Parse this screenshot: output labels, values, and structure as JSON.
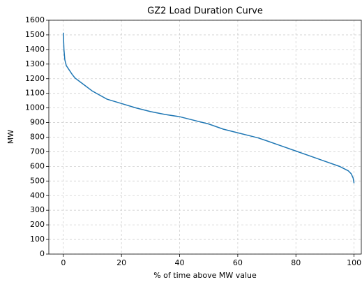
{
  "chart_data": {
    "type": "line",
    "title": "GZ2 Load Duration Curve",
    "xlabel": "% of time above MW value",
    "ylabel": "MW",
    "x": [
      0,
      0.2,
      0.5,
      1,
      2,
      3,
      4,
      6,
      8,
      10,
      15,
      20,
      25,
      30,
      35,
      40,
      45,
      50,
      55,
      60,
      65,
      67,
      70,
      75,
      80,
      85,
      90,
      95,
      98,
      99,
      99.7,
      100
    ],
    "series": [
      {
        "name": "GZ2",
        "color": "#1f77b4",
        "values": [
          1515,
          1400,
          1330,
          1290,
          1260,
          1230,
          1205,
          1175,
          1145,
          1115,
          1060,
          1030,
          1000,
          975,
          955,
          940,
          915,
          890,
          855,
          830,
          805,
          795,
          775,
          740,
          705,
          670,
          635,
          600,
          570,
          550,
          520,
          485
        ]
      }
    ],
    "xlim": [
      -5,
      102.5
    ],
    "xticks": [
      0,
      20,
      40,
      60,
      80,
      100
    ],
    "ylim": [
      0,
      1600
    ],
    "yticks": [
      0,
      100,
      200,
      300,
      400,
      500,
      600,
      700,
      800,
      900,
      1000,
      1100,
      1200,
      1300,
      1400,
      1500,
      1600
    ],
    "grid": true
  }
}
